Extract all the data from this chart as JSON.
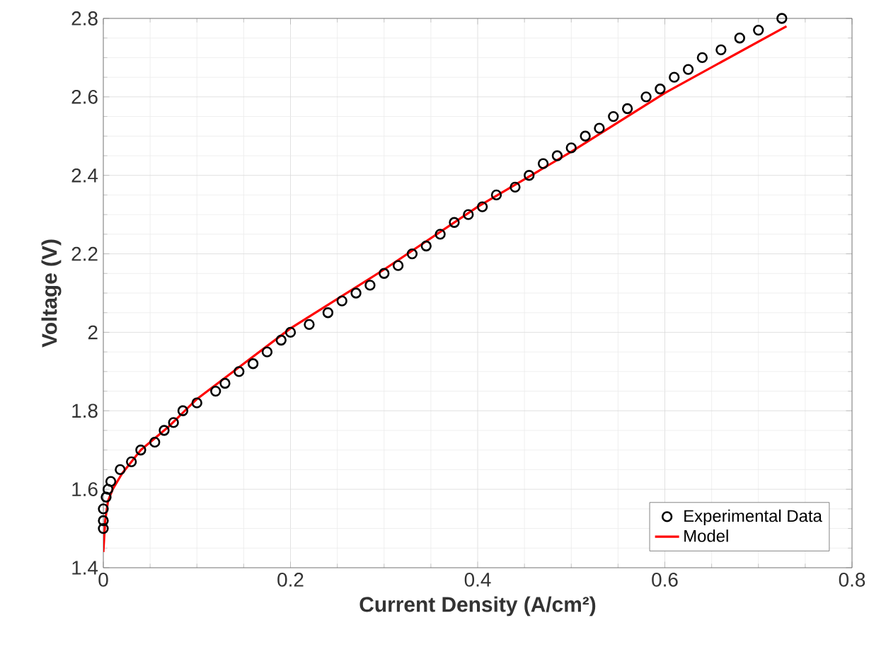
{
  "chart_data": {
    "type": "scatter",
    "xlabel": "Current Density (A/cm²)",
    "ylabel": "Voltage (V)",
    "xlim": [
      0,
      0.8
    ],
    "ylim": [
      1.4,
      2.8
    ],
    "xticks": [
      0,
      0.2,
      0.4,
      0.6,
      0.8
    ],
    "yticks": [
      1.4,
      1.6,
      1.8,
      2,
      2.2,
      2.4,
      2.6,
      2.8
    ],
    "grid": true,
    "legend": "bottom right",
    "series": [
      {
        "name": "Experimental Data",
        "marker": "circle",
        "color": "#000000",
        "x": [
          0.0,
          0.0,
          0.0,
          0.003,
          0.005,
          0.008,
          0.018,
          0.03,
          0.04,
          0.055,
          0.065,
          0.075,
          0.085,
          0.1,
          0.12,
          0.13,
          0.145,
          0.16,
          0.175,
          0.19,
          0.2,
          0.22,
          0.24,
          0.255,
          0.27,
          0.285,
          0.3,
          0.315,
          0.33,
          0.345,
          0.36,
          0.375,
          0.39,
          0.405,
          0.42,
          0.44,
          0.455,
          0.47,
          0.485,
          0.5,
          0.515,
          0.53,
          0.545,
          0.56,
          0.58,
          0.595,
          0.61,
          0.625,
          0.64,
          0.66,
          0.68,
          0.7,
          0.725
        ],
        "values": [
          1.5,
          1.52,
          1.55,
          1.58,
          1.6,
          1.62,
          1.65,
          1.67,
          1.7,
          1.72,
          1.75,
          1.77,
          1.8,
          1.82,
          1.85,
          1.87,
          1.9,
          1.92,
          1.95,
          1.98,
          2.0,
          2.02,
          2.05,
          2.08,
          2.1,
          2.12,
          2.15,
          2.17,
          2.2,
          2.22,
          2.25,
          2.28,
          2.3,
          2.32,
          2.35,
          2.37,
          2.4,
          2.43,
          2.45,
          2.47,
          2.5,
          2.52,
          2.55,
          2.57,
          2.6,
          2.62,
          2.65,
          2.67,
          2.7,
          2.72,
          2.75,
          2.77,
          2.8
        ]
      },
      {
        "name": "Model",
        "type": "line",
        "line_style": "solid",
        "color": "#ff0000",
        "x": [
          0,
          0.002,
          0.005,
          0.01,
          0.02,
          0.04,
          0.07,
          0.1,
          0.15,
          0.2,
          0.3,
          0.4,
          0.5,
          0.6,
          0.73
        ],
        "values": [
          1.44,
          1.52,
          1.57,
          1.6,
          1.64,
          1.7,
          1.76,
          1.83,
          1.92,
          2.01,
          2.16,
          2.32,
          2.46,
          2.61,
          2.78
        ]
      }
    ]
  }
}
